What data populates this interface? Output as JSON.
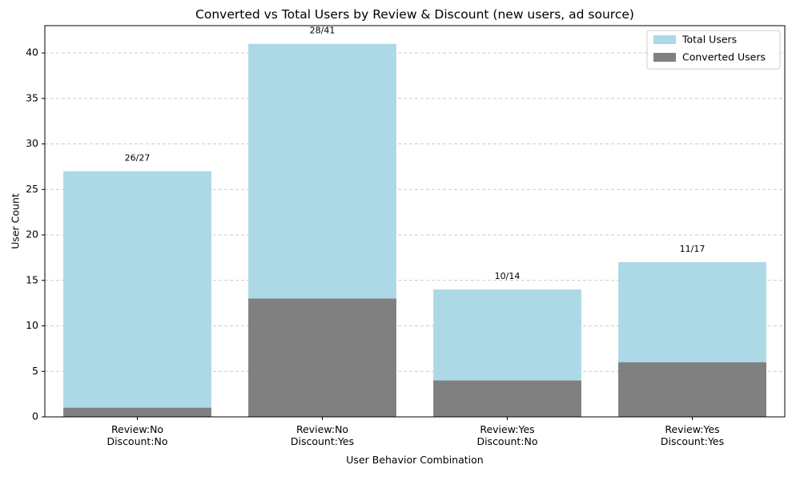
{
  "chart_data": {
    "type": "bar",
    "title": "Converted vs Total Users by Review & Discount (new users, ad source)",
    "xlabel": "User Behavior Combination",
    "ylabel": "User Count",
    "categories": [
      [
        "Review:No",
        "Discount:No"
      ],
      [
        "Review:No",
        "Discount:Yes"
      ],
      [
        "Review:Yes",
        "Discount:No"
      ],
      [
        "Review:Yes",
        "Discount:Yes"
      ]
    ],
    "series": [
      {
        "name": "Total Users",
        "values": [
          27,
          41,
          14,
          17
        ],
        "color": "#add8e6"
      },
      {
        "name": "Converted Users",
        "values": [
          1,
          13,
          4,
          6
        ],
        "color": "#808080"
      }
    ],
    "bar_labels": [
      "26/27",
      "28/41",
      "10/14",
      "11/17"
    ],
    "ylim": [
      0,
      43
    ],
    "yticks": [
      0,
      5,
      10,
      15,
      20,
      25,
      30,
      35,
      40
    ],
    "grid": "y-dashed",
    "legend_position": "top-right"
  }
}
